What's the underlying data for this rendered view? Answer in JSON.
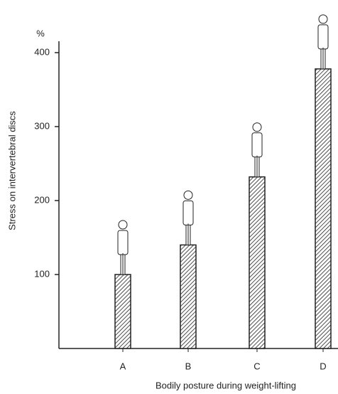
{
  "chart_data": {
    "type": "bar",
    "y_unit": "%",
    "y_label": "Stress on intervertebral discs",
    "x_label": "Bodily posture during weight-lifting",
    "categories": [
      "A",
      "B",
      "C",
      "D"
    ],
    "values": [
      100,
      140,
      232,
      378
    ],
    "ylim": [
      0,
      413
    ],
    "yticks": [
      100,
      200,
      300,
      400
    ],
    "color": "#222222"
  }
}
